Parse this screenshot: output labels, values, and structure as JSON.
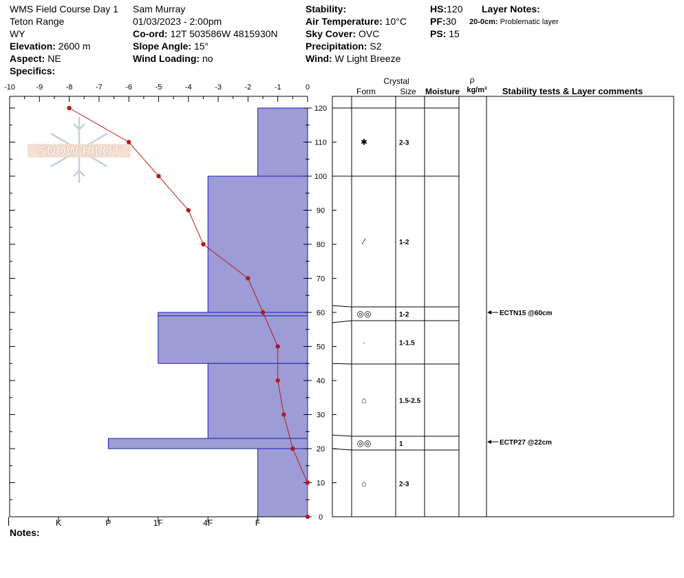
{
  "header": {
    "course": "WMS Field Course Day 1",
    "range": "Teton Range",
    "state": "WY",
    "elevation_label": "Elevation:",
    "elevation": "2600 m",
    "aspect_label": "Aspect:",
    "aspect": "NE",
    "specifics_label": "Specifics:",
    "observer": "Sam Murray",
    "datetime": "01/03/2023 - 2:00pm",
    "coord_label": "Co-ord:",
    "coord": "12T 503586W 4815930N",
    "slope_label": "Slope Angle:",
    "slope": "15°",
    "wind_loading_label": "Wind Loading:",
    "wind_loading": "no",
    "stability_label": "Stability:",
    "stability": "",
    "air_temp_label": "Air Temperature:",
    "air_temp": "10°C",
    "sky_label": "Sky Cover:",
    "sky": "OVC",
    "precip_label": "Precipitation:",
    "precip": "S2",
    "wind_label": "Wind:",
    "wind": "W Light Breeze",
    "hs_label": "HS:",
    "hs": "120",
    "pf_label": "PF:",
    "pf": "30",
    "ps_label": "PS:",
    "ps": "15",
    "layer_notes_label": "Layer Notes:",
    "layer_note_range": "20-0cm:",
    "layer_note_text": "Problematic layer",
    "notes_label": "Notes:",
    "watermark": "SNOW PILOT"
  },
  "table_headers": {
    "crystal": "Crystal",
    "form": "Form",
    "size": "Size",
    "moisture": "Moisture",
    "rho": "ρ",
    "density_unit": "kg/m³",
    "stability_comments": "Stability tests & Layer comments"
  },
  "chart_data": {
    "type": "snow-profile",
    "temperature_axis": {
      "ticks": [
        "-10",
        "-9",
        "-8",
        "-7",
        "-6",
        "-5",
        "-4",
        "-3",
        "-2",
        "-1",
        "0"
      ],
      "range": [
        -10,
        0
      ]
    },
    "height_axis": {
      "ticks": [
        "0",
        "10",
        "20",
        "30",
        "40",
        "50",
        "60",
        "70",
        "80",
        "90",
        "100",
        "110",
        "120"
      ],
      "range": [
        0,
        120
      ]
    },
    "hardness_axis": {
      "labels": [
        "I",
        "K",
        "P",
        "1F",
        "4F",
        "F"
      ],
      "scale": [
        {
          "label": "F",
          "value": 1
        },
        {
          "label": "4F",
          "value": 2
        },
        {
          "label": "1F",
          "value": 3
        },
        {
          "label": "P",
          "value": 4
        },
        {
          "label": "K",
          "value": 5
        },
        {
          "label": "I",
          "value": 6
        }
      ]
    },
    "temperature_profile": [
      {
        "depth": 120,
        "temp": -8
      },
      {
        "depth": 110,
        "temp": -6
      },
      {
        "depth": 100,
        "temp": -5
      },
      {
        "depth": 90,
        "temp": -4
      },
      {
        "depth": 80,
        "temp": -3.5
      },
      {
        "depth": 70,
        "temp": -2
      },
      {
        "depth": 60,
        "temp": -1.5
      },
      {
        "depth": 50,
        "temp": -1
      },
      {
        "depth": 40,
        "temp": -1
      },
      {
        "depth": 30,
        "temp": -0.8
      },
      {
        "depth": 20,
        "temp": -0.5
      },
      {
        "depth": 10,
        "temp": 0
      },
      {
        "depth": 0,
        "temp": 0
      }
    ],
    "hardness_layers": [
      {
        "top": 120,
        "bottom": 100,
        "hardness": "F"
      },
      {
        "top": 100,
        "bottom": 60,
        "hardness": "4F"
      },
      {
        "top": 60,
        "bottom": 59,
        "hardness": "1F"
      },
      {
        "top": 59,
        "bottom": 45,
        "hardness": "1F"
      },
      {
        "top": 45,
        "bottom": 23,
        "hardness": "4F"
      },
      {
        "top": 23,
        "bottom": 20,
        "hardness": "P"
      },
      {
        "top": 20,
        "bottom": 0,
        "hardness": "F"
      }
    ],
    "layers": [
      {
        "top": 120,
        "bottom": 100,
        "form_icon": "star-crystal-icon",
        "form_glyph": "✱",
        "size": "2-3",
        "moisture": ""
      },
      {
        "top": 100,
        "bottom": 62,
        "form_icon": "decomposing-icon",
        "form_glyph": "⁄",
        "size": "1-2",
        "moisture": ""
      },
      {
        "top": 62,
        "bottom": 57,
        "form_icon": "rounded-grains-icon",
        "form_glyph": "◎◎",
        "size": "1-2",
        "moisture": ""
      },
      {
        "top": 57,
        "bottom": 45,
        "form_icon": "dot-icon",
        "form_glyph": "·",
        "size": "1-1.5",
        "moisture": ""
      },
      {
        "top": 45,
        "bottom": 24,
        "form_icon": "faceted-icon",
        "form_glyph": "⌂",
        "size": "1.5-2.5",
        "moisture": ""
      },
      {
        "top": 24,
        "bottom": 20,
        "form_icon": "rounded-grains-icon",
        "form_glyph": "◎◎",
        "size": "1",
        "moisture": ""
      },
      {
        "top": 20,
        "bottom": 0,
        "form_icon": "faceted-icon",
        "form_glyph": "⌂",
        "size": "2-3",
        "moisture": ""
      }
    ],
    "stability_tests": [
      {
        "depth": 60,
        "text": "ECTN15 @60cm"
      },
      {
        "depth": 22,
        "text": "ECTP27 @22cm"
      }
    ],
    "colors": {
      "hardness_fill": "#9d9cd6",
      "hardness_stroke": "#1d1db5",
      "temperature": "#b31a1a"
    }
  }
}
